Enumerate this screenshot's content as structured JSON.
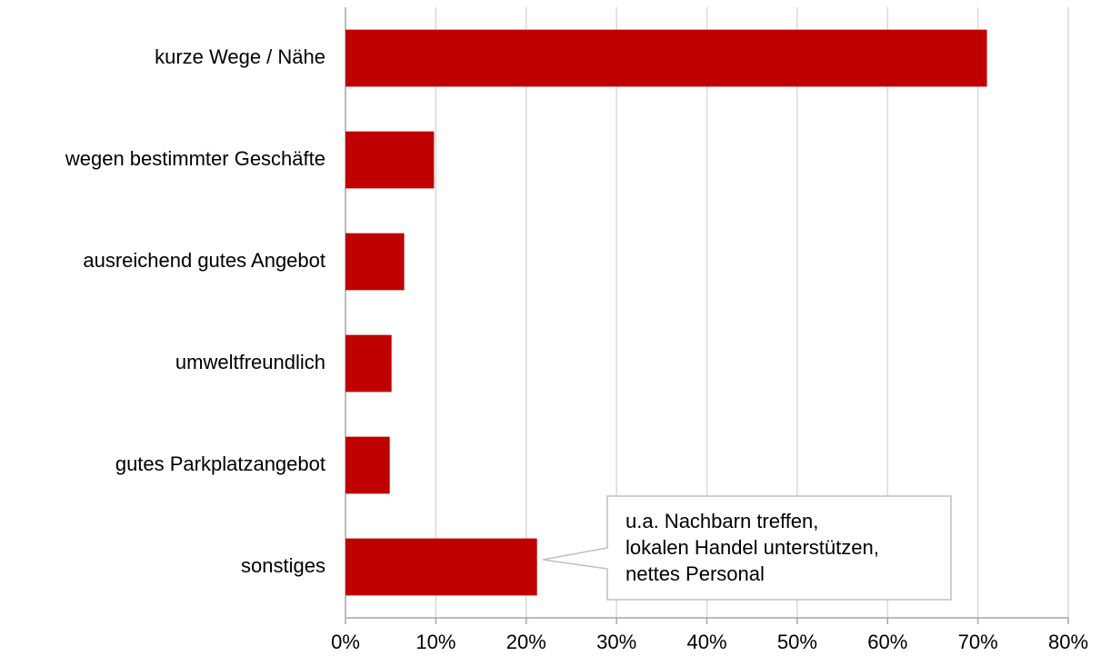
{
  "chart_data": {
    "type": "hbar",
    "categories": [
      "kurze Wege / Nähe",
      "wegen bestimmter Geschäfte",
      "ausreichend gutes Angebot",
      "umweltfreundlich",
      "gutes Parkplatzangebot",
      "sonstiges"
    ],
    "values": [
      71,
      9.8,
      6.5,
      5.1,
      4.9,
      21.2
    ],
    "color": "#c00000",
    "xlim": [
      0,
      80
    ],
    "xticks": [
      {
        "value": 0,
        "label": "0%"
      },
      {
        "value": 10,
        "label": "10%"
      },
      {
        "value": 20,
        "label": "20%"
      },
      {
        "value": 30,
        "label": "30%"
      },
      {
        "value": 40,
        "label": "40%"
      },
      {
        "value": 50,
        "label": "50%"
      },
      {
        "value": 60,
        "label": "60%"
      },
      {
        "value": 70,
        "label": "70%"
      },
      {
        "value": 80,
        "label": "80%"
      }
    ],
    "grid": true,
    "annotation": {
      "lines": [
        "u.a. Nachbarn treffen,",
        "lokalen Handel unterstützen,",
        "nettes Personal"
      ]
    }
  }
}
